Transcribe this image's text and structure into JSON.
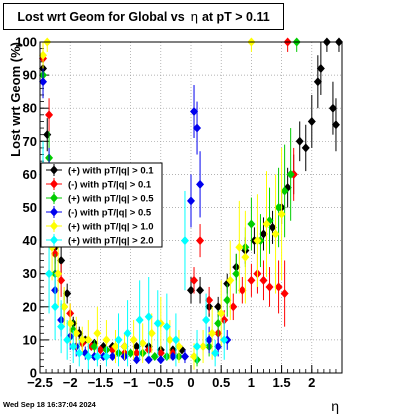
{
  "chart_data": {
    "type": "scatter",
    "title": {
      "prefix": "Lost wrt Geom for Global vs",
      "eta": "η",
      "suffix": "at pT > 0.11"
    },
    "xlabel": "η",
    "ylabel": "Lost wrt Geom (%)",
    "xlim": [
      -2.5,
      2.5
    ],
    "ylim": [
      0,
      100
    ],
    "x_ticks": [
      {
        "v": -2.5,
        "label": "−2.5"
      },
      {
        "v": -2,
        "label": "−2"
      },
      {
        "v": -1.5,
        "label": "−1.5"
      },
      {
        "v": -1,
        "label": "−1"
      },
      {
        "v": -0.5,
        "label": "−0.5"
      },
      {
        "v": 0,
        "label": "0"
      },
      {
        "v": 0.5,
        "label": "0.5"
      },
      {
        "v": 1,
        "label": "1"
      },
      {
        "v": 1.5,
        "label": "1.5"
      },
      {
        "v": 2,
        "label": "2"
      }
    ],
    "y_ticks": [
      0,
      10,
      20,
      30,
      40,
      50,
      60,
      70,
      80,
      90,
      100
    ],
    "grid": true,
    "legend_position": "left-middle",
    "series": [
      {
        "name": "(+) with pT/|q| > 0.1",
        "color": "#000000",
        "points": [
          [
            -2.45,
            92,
            4
          ],
          [
            -2.38,
            72,
            5
          ],
          [
            -2.25,
            38,
            5
          ],
          [
            -2.15,
            34,
            4
          ],
          [
            -2.05,
            24,
            3
          ],
          [
            -1.95,
            15,
            2
          ],
          [
            -1.85,
            12,
            2
          ],
          [
            -1.75,
            10,
            1
          ],
          [
            -1.6,
            9,
            1
          ],
          [
            -1.45,
            8,
            1
          ],
          [
            -1.3,
            8,
            1
          ],
          [
            -1.1,
            8,
            1
          ],
          [
            -0.9,
            8,
            1
          ],
          [
            -0.7,
            8,
            1
          ],
          [
            -0.5,
            7,
            1
          ],
          [
            -0.3,
            7,
            1
          ],
          [
            -0.15,
            7,
            1
          ],
          [
            0.0,
            25,
            4
          ],
          [
            0.15,
            25,
            4
          ],
          [
            0.3,
            20,
            3
          ],
          [
            0.45,
            20,
            3
          ],
          [
            0.6,
            27,
            3
          ],
          [
            0.75,
            32,
            4
          ],
          [
            0.9,
            37,
            4
          ],
          [
            1.05,
            40,
            4
          ],
          [
            1.2,
            42,
            5
          ],
          [
            1.35,
            44,
            5
          ],
          [
            1.5,
            50,
            5
          ],
          [
            1.6,
            56,
            6
          ],
          [
            1.7,
            60,
            6
          ],
          [
            1.8,
            70,
            6
          ],
          [
            1.9,
            68,
            7
          ],
          [
            2.0,
            76,
            8
          ],
          [
            2.1,
            88,
            8
          ],
          [
            2.15,
            92,
            8
          ],
          [
            2.25,
            100,
            3
          ],
          [
            2.35,
            80,
            8
          ],
          [
            2.4,
            75,
            8
          ],
          [
            2.45,
            100,
            3
          ]
        ]
      },
      {
        "name": "(-) with pT/|q| > 0.1",
        "color": "#ff0000",
        "points": [
          [
            -2.45,
            95,
            4
          ],
          [
            -2.35,
            78,
            5
          ],
          [
            -2.25,
            36,
            6
          ],
          [
            -2.15,
            28,
            5
          ],
          [
            -2.0,
            18,
            3
          ],
          [
            -1.9,
            12,
            2
          ],
          [
            -1.8,
            9,
            2
          ],
          [
            -1.65,
            8,
            1
          ],
          [
            -1.5,
            7,
            1
          ],
          [
            -1.3,
            7,
            1
          ],
          [
            -1.1,
            6,
            1
          ],
          [
            -0.9,
            6,
            1
          ],
          [
            -0.7,
            7,
            1
          ],
          [
            -0.5,
            6,
            1
          ],
          [
            -0.3,
            6,
            1
          ],
          [
            0.05,
            28,
            4
          ],
          [
            0.15,
            40,
            5
          ],
          [
            0.3,
            22,
            4
          ],
          [
            0.45,
            12,
            3
          ],
          [
            0.55,
            16,
            3
          ],
          [
            0.7,
            20,
            4
          ],
          [
            0.85,
            25,
            4
          ],
          [
            1.0,
            28,
            5
          ],
          [
            1.1,
            30,
            6
          ],
          [
            1.2,
            28,
            6
          ],
          [
            1.3,
            26,
            6
          ],
          [
            1.45,
            26,
            8
          ],
          [
            1.55,
            24,
            10
          ],
          [
            1.6,
            100,
            3
          ],
          [
            1.7,
            60,
            8
          ]
        ]
      },
      {
        "name": "(+) with pT/|q| > 0.5",
        "color": "#00cc00",
        "points": [
          [
            -2.45,
            90,
            5
          ],
          [
            -2.35,
            65,
            8
          ],
          [
            -2.25,
            30,
            6
          ],
          [
            -2.1,
            20,
            5
          ],
          [
            -1.95,
            13,
            3
          ],
          [
            -1.8,
            10,
            2
          ],
          [
            -1.6,
            8,
            2
          ],
          [
            -1.4,
            7,
            1
          ],
          [
            -1.2,
            6,
            1
          ],
          [
            -1.0,
            6,
            1
          ],
          [
            -0.8,
            6,
            1
          ],
          [
            -0.6,
            5,
            1
          ],
          [
            -0.4,
            5,
            1
          ],
          [
            -0.2,
            5,
            1
          ],
          [
            0.1,
            4,
            2
          ],
          [
            0.3,
            8,
            3
          ],
          [
            0.45,
            15,
            4
          ],
          [
            0.6,
            22,
            5
          ],
          [
            0.75,
            30,
            6
          ],
          [
            0.9,
            38,
            6
          ],
          [
            1.0,
            45,
            8
          ],
          [
            1.15,
            40,
            8
          ],
          [
            1.3,
            46,
            10
          ],
          [
            1.45,
            50,
            12
          ],
          [
            1.55,
            55,
            14
          ],
          [
            1.65,
            60,
            14
          ],
          [
            1.75,
            100,
            3
          ]
        ]
      },
      {
        "name": "(-) with pT/|q| > 0.5",
        "color": "#0000ee",
        "points": [
          [
            -2.45,
            88,
            5
          ],
          [
            -2.35,
            60,
            8
          ],
          [
            -2.25,
            25,
            6
          ],
          [
            -2.15,
            16,
            5
          ],
          [
            -2.0,
            11,
            4
          ],
          [
            -1.9,
            8,
            3
          ],
          [
            -1.75,
            6,
            2
          ],
          [
            -1.6,
            5,
            1
          ],
          [
            -1.45,
            5,
            1
          ],
          [
            -1.3,
            5,
            1
          ],
          [
            -1.1,
            5,
            1
          ],
          [
            -0.9,
            4,
            1
          ],
          [
            -0.7,
            4,
            1
          ],
          [
            -0.5,
            4,
            1
          ],
          [
            -0.3,
            5,
            1
          ],
          [
            -0.1,
            5,
            2
          ],
          [
            0.0,
            52,
            8
          ],
          [
            0.05,
            79,
            8
          ],
          [
            0.1,
            74,
            8
          ],
          [
            0.15,
            57,
            10
          ],
          [
            0.3,
            10,
            4
          ],
          [
            0.45,
            8,
            3
          ],
          [
            0.6,
            10,
            3
          ]
        ]
      },
      {
        "name": "(+) with pT/|q| > 1.0",
        "color": "#ffff00",
        "points": [
          [
            -2.45,
            96,
            4
          ],
          [
            -2.38,
            100,
            3
          ],
          [
            -2.3,
            38,
            10
          ],
          [
            -2.2,
            30,
            10
          ],
          [
            -2.1,
            20,
            6
          ],
          [
            -2.0,
            15,
            6
          ],
          [
            -1.9,
            12,
            5
          ],
          [
            -1.8,
            10,
            4
          ],
          [
            -1.7,
            10,
            6
          ],
          [
            -1.55,
            12,
            8
          ],
          [
            -1.4,
            10,
            6
          ],
          [
            -1.25,
            8,
            5
          ],
          [
            -1.1,
            8,
            4
          ],
          [
            -0.95,
            10,
            6
          ],
          [
            -0.8,
            9,
            6
          ],
          [
            -0.65,
            12,
            6
          ],
          [
            -0.5,
            15,
            8
          ],
          [
            -0.35,
            10,
            6
          ],
          [
            -0.2,
            8,
            5
          ],
          [
            0.05,
            5,
            4
          ],
          [
            0.2,
            8,
            5
          ],
          [
            0.35,
            12,
            8
          ],
          [
            0.5,
            18,
            10
          ],
          [
            0.65,
            28,
            12
          ],
          [
            0.8,
            38,
            14
          ],
          [
            0.9,
            35,
            14
          ],
          [
            1.0,
            100,
            3
          ],
          [
            1.1,
            40,
            14
          ],
          [
            1.25,
            45,
            16
          ],
          [
            1.4,
            42,
            18
          ],
          [
            1.5,
            48,
            20
          ]
        ]
      },
      {
        "name": "(+) with pT/|q| > 2.0",
        "color": "#00ffff",
        "points": [
          [
            -2.45,
            60,
            10
          ],
          [
            -2.35,
            30,
            12
          ],
          [
            -2.25,
            20,
            10
          ],
          [
            -2.15,
            14,
            8
          ],
          [
            -2.05,
            10,
            6
          ],
          [
            -1.95,
            8,
            5
          ],
          [
            -1.85,
            6,
            4
          ],
          [
            -1.7,
            5,
            4
          ],
          [
            -1.55,
            5,
            3
          ],
          [
            -1.4,
            5,
            3
          ],
          [
            -1.2,
            10,
            8
          ],
          [
            -1.05,
            12,
            10
          ],
          [
            -0.85,
            16,
            12
          ],
          [
            -0.7,
            17,
            12
          ],
          [
            -0.55,
            15,
            10
          ],
          [
            -0.4,
            14,
            10
          ],
          [
            -0.25,
            10,
            8
          ],
          [
            -0.1,
            40,
            15
          ],
          [
            0.1,
            8,
            5
          ],
          [
            0.25,
            16,
            8
          ],
          [
            0.4,
            6,
            4
          ],
          [
            0.55,
            10,
            6
          ]
        ]
      }
    ]
  },
  "footer": {
    "timestamp": "Wed Sep 18 16:37:04 2024"
  }
}
